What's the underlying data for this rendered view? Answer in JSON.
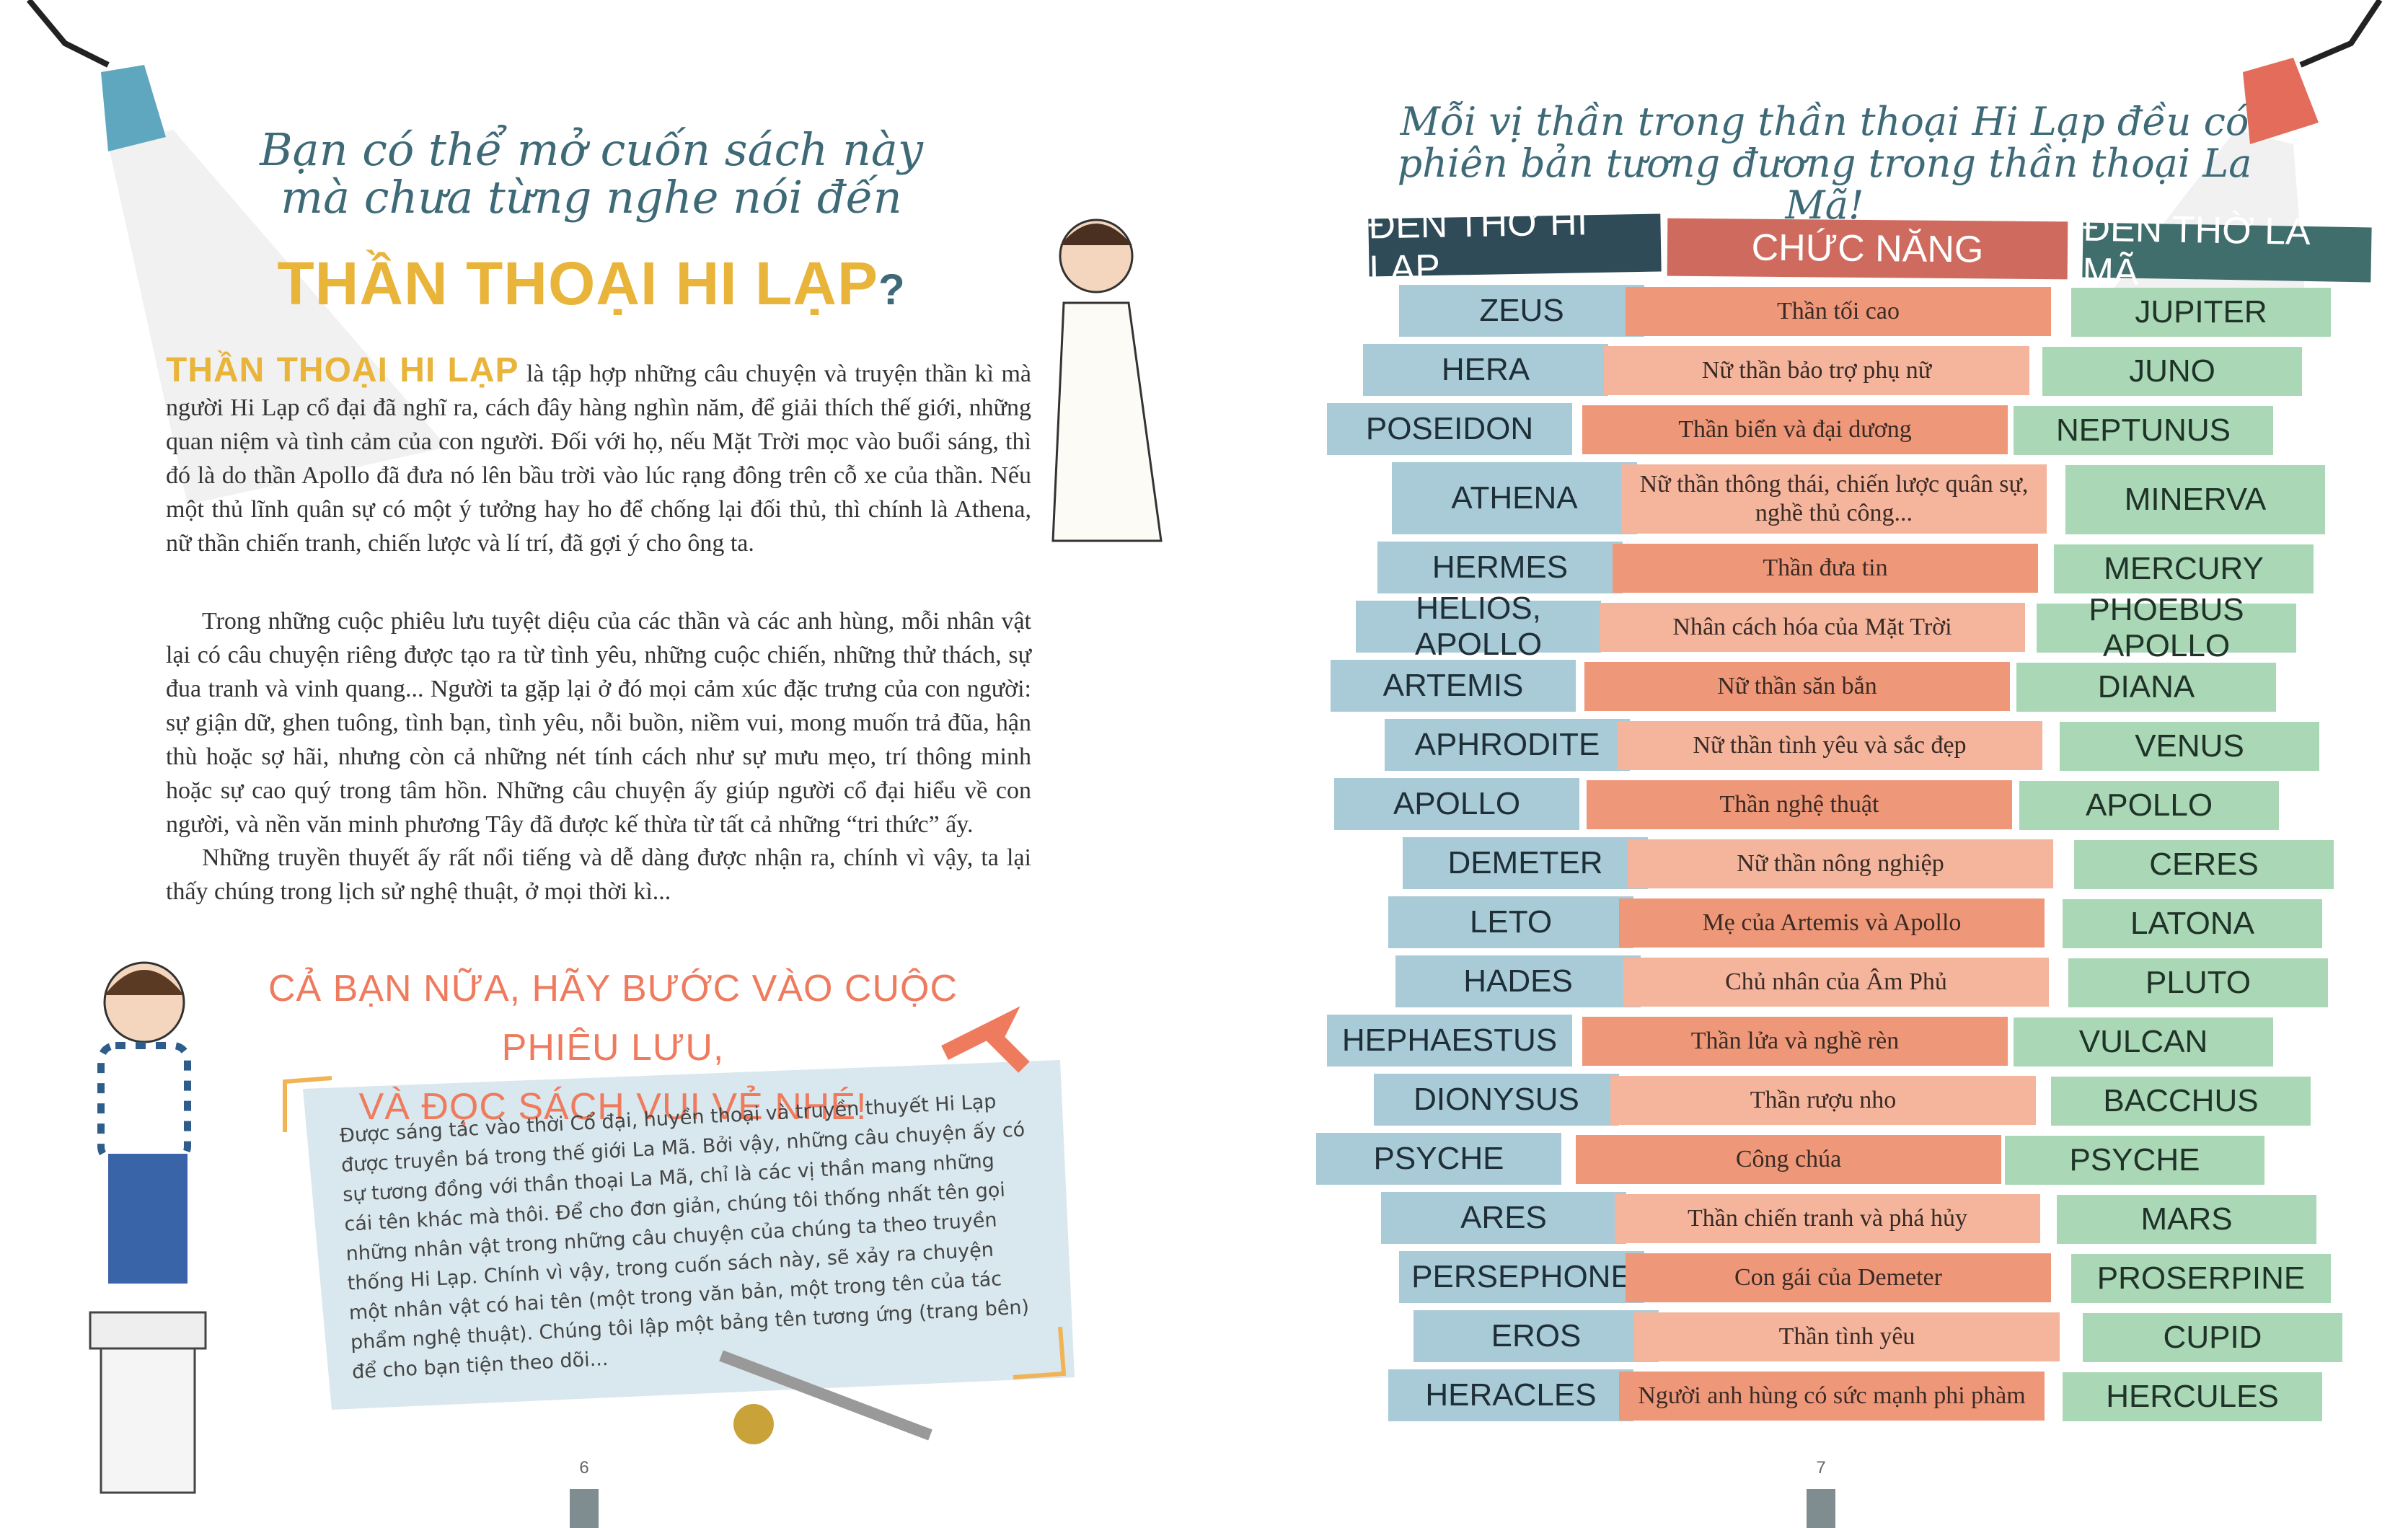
{
  "left": {
    "heading": [
      "Bạn có thể mở cuốn sách này",
      "mà chưa từng nghe nói đến"
    ],
    "title_highlight": "THẦN THOẠI HI LẠP",
    "title_end": "?",
    "paragraph1_lead": "THẦN THOẠI HI LẠP",
    "paragraph1": "là tập hợp những câu chuyện và truyện thần kì mà người Hi Lạp cổ đại đã nghĩ ra, cách đây hàng nghìn năm, để giải thích thế giới, những quan niệm và tình cảm của con người. Đối với họ, nếu Mặt Trời mọc vào buổi sáng, thì đó là do thần Apollo đã đưa nó lên bầu trời vào lúc rạng đông trên cỗ xe của thần. Nếu một thủ lĩnh quân sự có một ý tưởng hay ho để chống lại đối thủ, thì chính là Athena, nữ thần chiến tranh, chiến lược và lí trí, đã gợi ý cho ông ta.",
    "paragraph2": "Trong những cuộc phiêu lưu tuyệt diệu của các thần và các anh hùng, mỗi nhân vật lại có câu chuyện riêng được tạo ra từ tình yêu, những cuộc chiến, những thử thách, sự đua tranh và vinh quang... Người ta gặp lại ở đó mọi cảm xúc đặc trưng của con người: sự giận dữ, ghen tuông, tình bạn, tình yêu, nỗi buồn, niềm vui, mong muốn trả đũa, hận thù hoặc sợ hãi, nhưng còn cả những nét tính cách như sự mưu mẹo, trí thông minh hoặc sự cao quý trong tâm hồn. Những câu chuyện ấy giúp người cổ đại hiểu về con người, và nền văn minh phương Tây đã được kế thừa từ tất cả những “tri thức” ấy.",
    "paragraph3": "Những truyền thuyết ấy rất nổi tiếng và dễ dàng được nhận ra, chính vì vậy, ta lại thấy chúng trong lịch sử nghệ thuật, ở mọi thời kì...",
    "callout": [
      "CẢ BẠN NỮA, HÃY BƯỚC VÀO CUỘC PHIÊU LƯU,",
      "VÀ ĐỌC SÁCH VUI VẺ NHÉ!"
    ],
    "note": "Được sáng tác vào thời Cổ đại, huyền thoại và truyền thuyết Hi Lạp được truyền bá trong thế giới La Mã. Bởi vậy, những câu chuyện ấy có sự tương đồng với thần thoại La Mã, chỉ là các vị thần mang những cái tên khác mà thôi. Để cho đơn giản, chúng tôi thống nhất tên gọi những nhân vật trong những câu chuyện của chúng ta theo truyền thống Hi Lạp. Chính vì vậy, trong cuốn sách này, sẽ xảy ra chuyện một nhân vật có hai tên (một trong văn bản, một trong tên của tác phẩm nghệ thuật). Chúng tôi lập một bảng tên tương ứng (trang bên) để cho bạn tiện theo dõi...",
    "page_number": "6"
  },
  "right": {
    "heading": [
      "Mỗi vị thần trong thần thoại Hi Lạp đều có",
      "phiên bản tương đương trong thần thoại La Mã!"
    ],
    "table": {
      "headers": [
        "ĐỀN THỜ HI LẠP",
        "CHỨC NĂNG",
        "ĐỀN THỜ LA MÃ"
      ],
      "rows": [
        [
          "ZEUS",
          "Thần tối cao",
          "JUPITER"
        ],
        [
          "HERA",
          "Nữ thần bảo trợ phụ nữ",
          "JUNO"
        ],
        [
          "POSEIDON",
          "Thần biển và đại dương",
          "NEPTUNUS"
        ],
        [
          "ATHENA",
          "Nữ thần thông thái, chiến lược quân sự, nghề thủ công...",
          "MINERVA"
        ],
        [
          "HERMES",
          "Thần đưa tin",
          "MERCURY"
        ],
        [
          "HELIOS, APOLLO",
          "Nhân cách hóa của Mặt Trời",
          "PHOEBUS APOLLO"
        ],
        [
          "ARTEMIS",
          "Nữ thần săn bắn",
          "DIANA"
        ],
        [
          "APHRODITE",
          "Nữ thần tình yêu và sắc đẹp",
          "VENUS"
        ],
        [
          "APOLLO",
          "Thần nghệ thuật",
          "APOLLO"
        ],
        [
          "DEMETER",
          "Nữ thần nông nghiệp",
          "CERES"
        ],
        [
          "LETO",
          "Mẹ của Artemis và Apollo",
          "LATONA"
        ],
        [
          "HADES",
          "Chủ nhân của Âm Phủ",
          "PLUTO"
        ],
        [
          "HEPHAESTUS",
          "Thần lửa và nghề rèn",
          "VULCAN"
        ],
        [
          "DIONYSUS",
          "Thần rượu nho",
          "BACCHUS"
        ],
        [
          "PSYCHE",
          "Công chúa",
          "PSYCHE"
        ],
        [
          "ARES",
          "Thần chiến tranh và phá hủy",
          "MARS"
        ],
        [
          "PERSEPHONE",
          "Con gái của Demeter",
          "PROSERPINE"
        ],
        [
          "EROS",
          "Thần tình yêu",
          "CUPID"
        ],
        [
          "HERACLES",
          "Người anh hùng có sức mạnh phi phàm",
          "HERCULES"
        ]
      ]
    },
    "page_number": "7"
  }
}
